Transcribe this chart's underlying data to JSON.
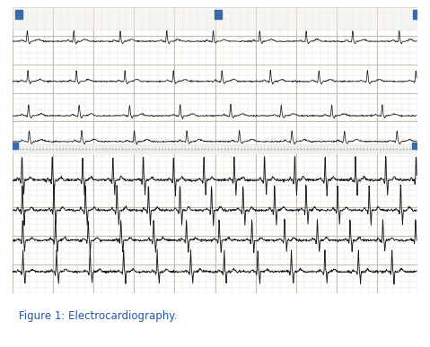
{
  "figure_width": 4.79,
  "figure_height": 3.87,
  "dpi": 100,
  "bg_color": "#ffffff",
  "border_color": "#b0b0b0",
  "caption_text": "Figure 1: Electrocardiography.",
  "caption_fontsize": 8.5,
  "caption_color": "#2255aa",
  "ecg_paper_color": "#e8e2d8",
  "ecg_grid_fine_color": "#c8c0b0",
  "ecg_grid_coarse_color": "#b8b0a0",
  "ecg_line_color": "#1a1a1a",
  "blue_marker_color": "#3a6aaa",
  "separator_line_color": "#6699cc",
  "photo_border_color": "#999999",
  "top_strip_bg": "#ddd8ce",
  "bottom_strip_bg": "#d8d3c8",
  "white_strip_color": "#f0eeea"
}
